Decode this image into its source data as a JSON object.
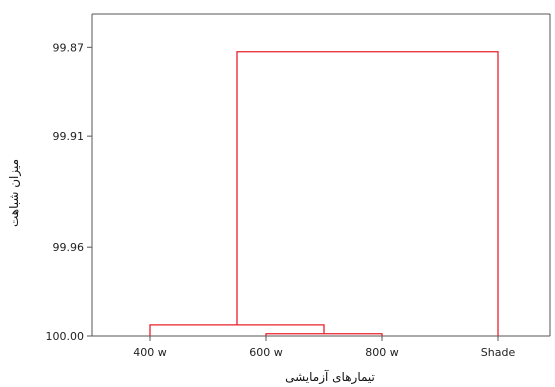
{
  "chart_data": {
    "type": "dendrogram",
    "title": "",
    "xlabel": "تیمارهای آزمایشی",
    "ylabel": "میزان شباهت",
    "ylim": [
      99.855,
      100.0
    ],
    "y_ticks": [
      99.87,
      99.91,
      99.96,
      100.0
    ],
    "y_tick_labels": [
      "99.87",
      "99.91",
      "99.96",
      "100.00"
    ],
    "leaves": [
      "400 w",
      "600 w",
      "800 w",
      "Shade"
    ],
    "merges": [
      {
        "left": "600 w",
        "right": "800 w",
        "similarity": 99.999
      },
      {
        "left": "400 w",
        "right": "600 w + 800 w",
        "similarity": 99.995
      },
      {
        "left": "400 w + 600 w + 800 w",
        "right": "Shade",
        "similarity": 99.872
      }
    ],
    "colors": {
      "link": "#e8202a",
      "axis": "#555555",
      "text": "#222222"
    },
    "grid": false,
    "legend": "none"
  }
}
